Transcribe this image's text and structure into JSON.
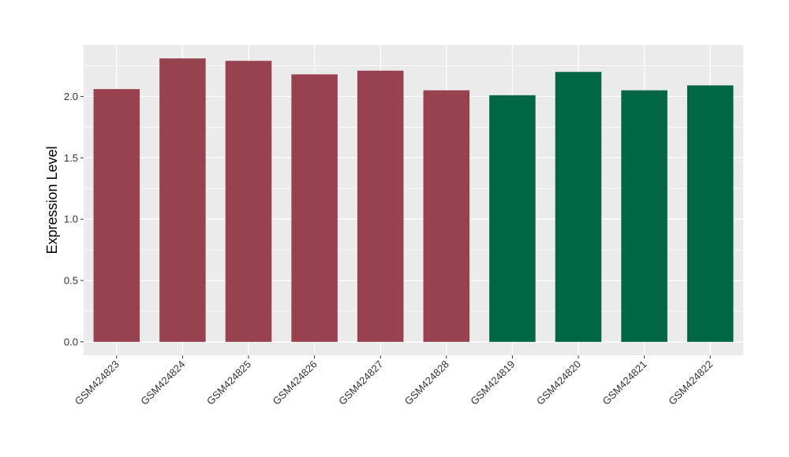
{
  "chart_data": {
    "type": "bar",
    "title": "",
    "xlabel": "",
    "ylabel": "Expression Level",
    "categories": [
      "GSM424823",
      "GSM424824",
      "GSM424825",
      "GSM424826",
      "GSM424827",
      "GSM424828",
      "GSM424819",
      "GSM424820",
      "GSM424821",
      "GSM424822"
    ],
    "values": [
      2.06,
      2.31,
      2.29,
      2.18,
      2.21,
      2.05,
      2.01,
      2.2,
      2.05,
      2.09
    ],
    "bar_colors": [
      "#98414f",
      "#98414f",
      "#98414f",
      "#98414f",
      "#98414f",
      "#98414f",
      "#006644",
      "#006644",
      "#006644",
      "#006644"
    ],
    "ylim": [
      -0.11,
      2.42
    ],
    "yticks": [
      0.0,
      0.5,
      1.0,
      1.5,
      2.0
    ],
    "ytick_labels": [
      "0.0",
      "0.5",
      "1.0",
      "1.5",
      "2.0"
    ],
    "grid": true,
    "legend": "none",
    "panel_background": "#ebebeb",
    "grid_color": "#ffffff"
  }
}
